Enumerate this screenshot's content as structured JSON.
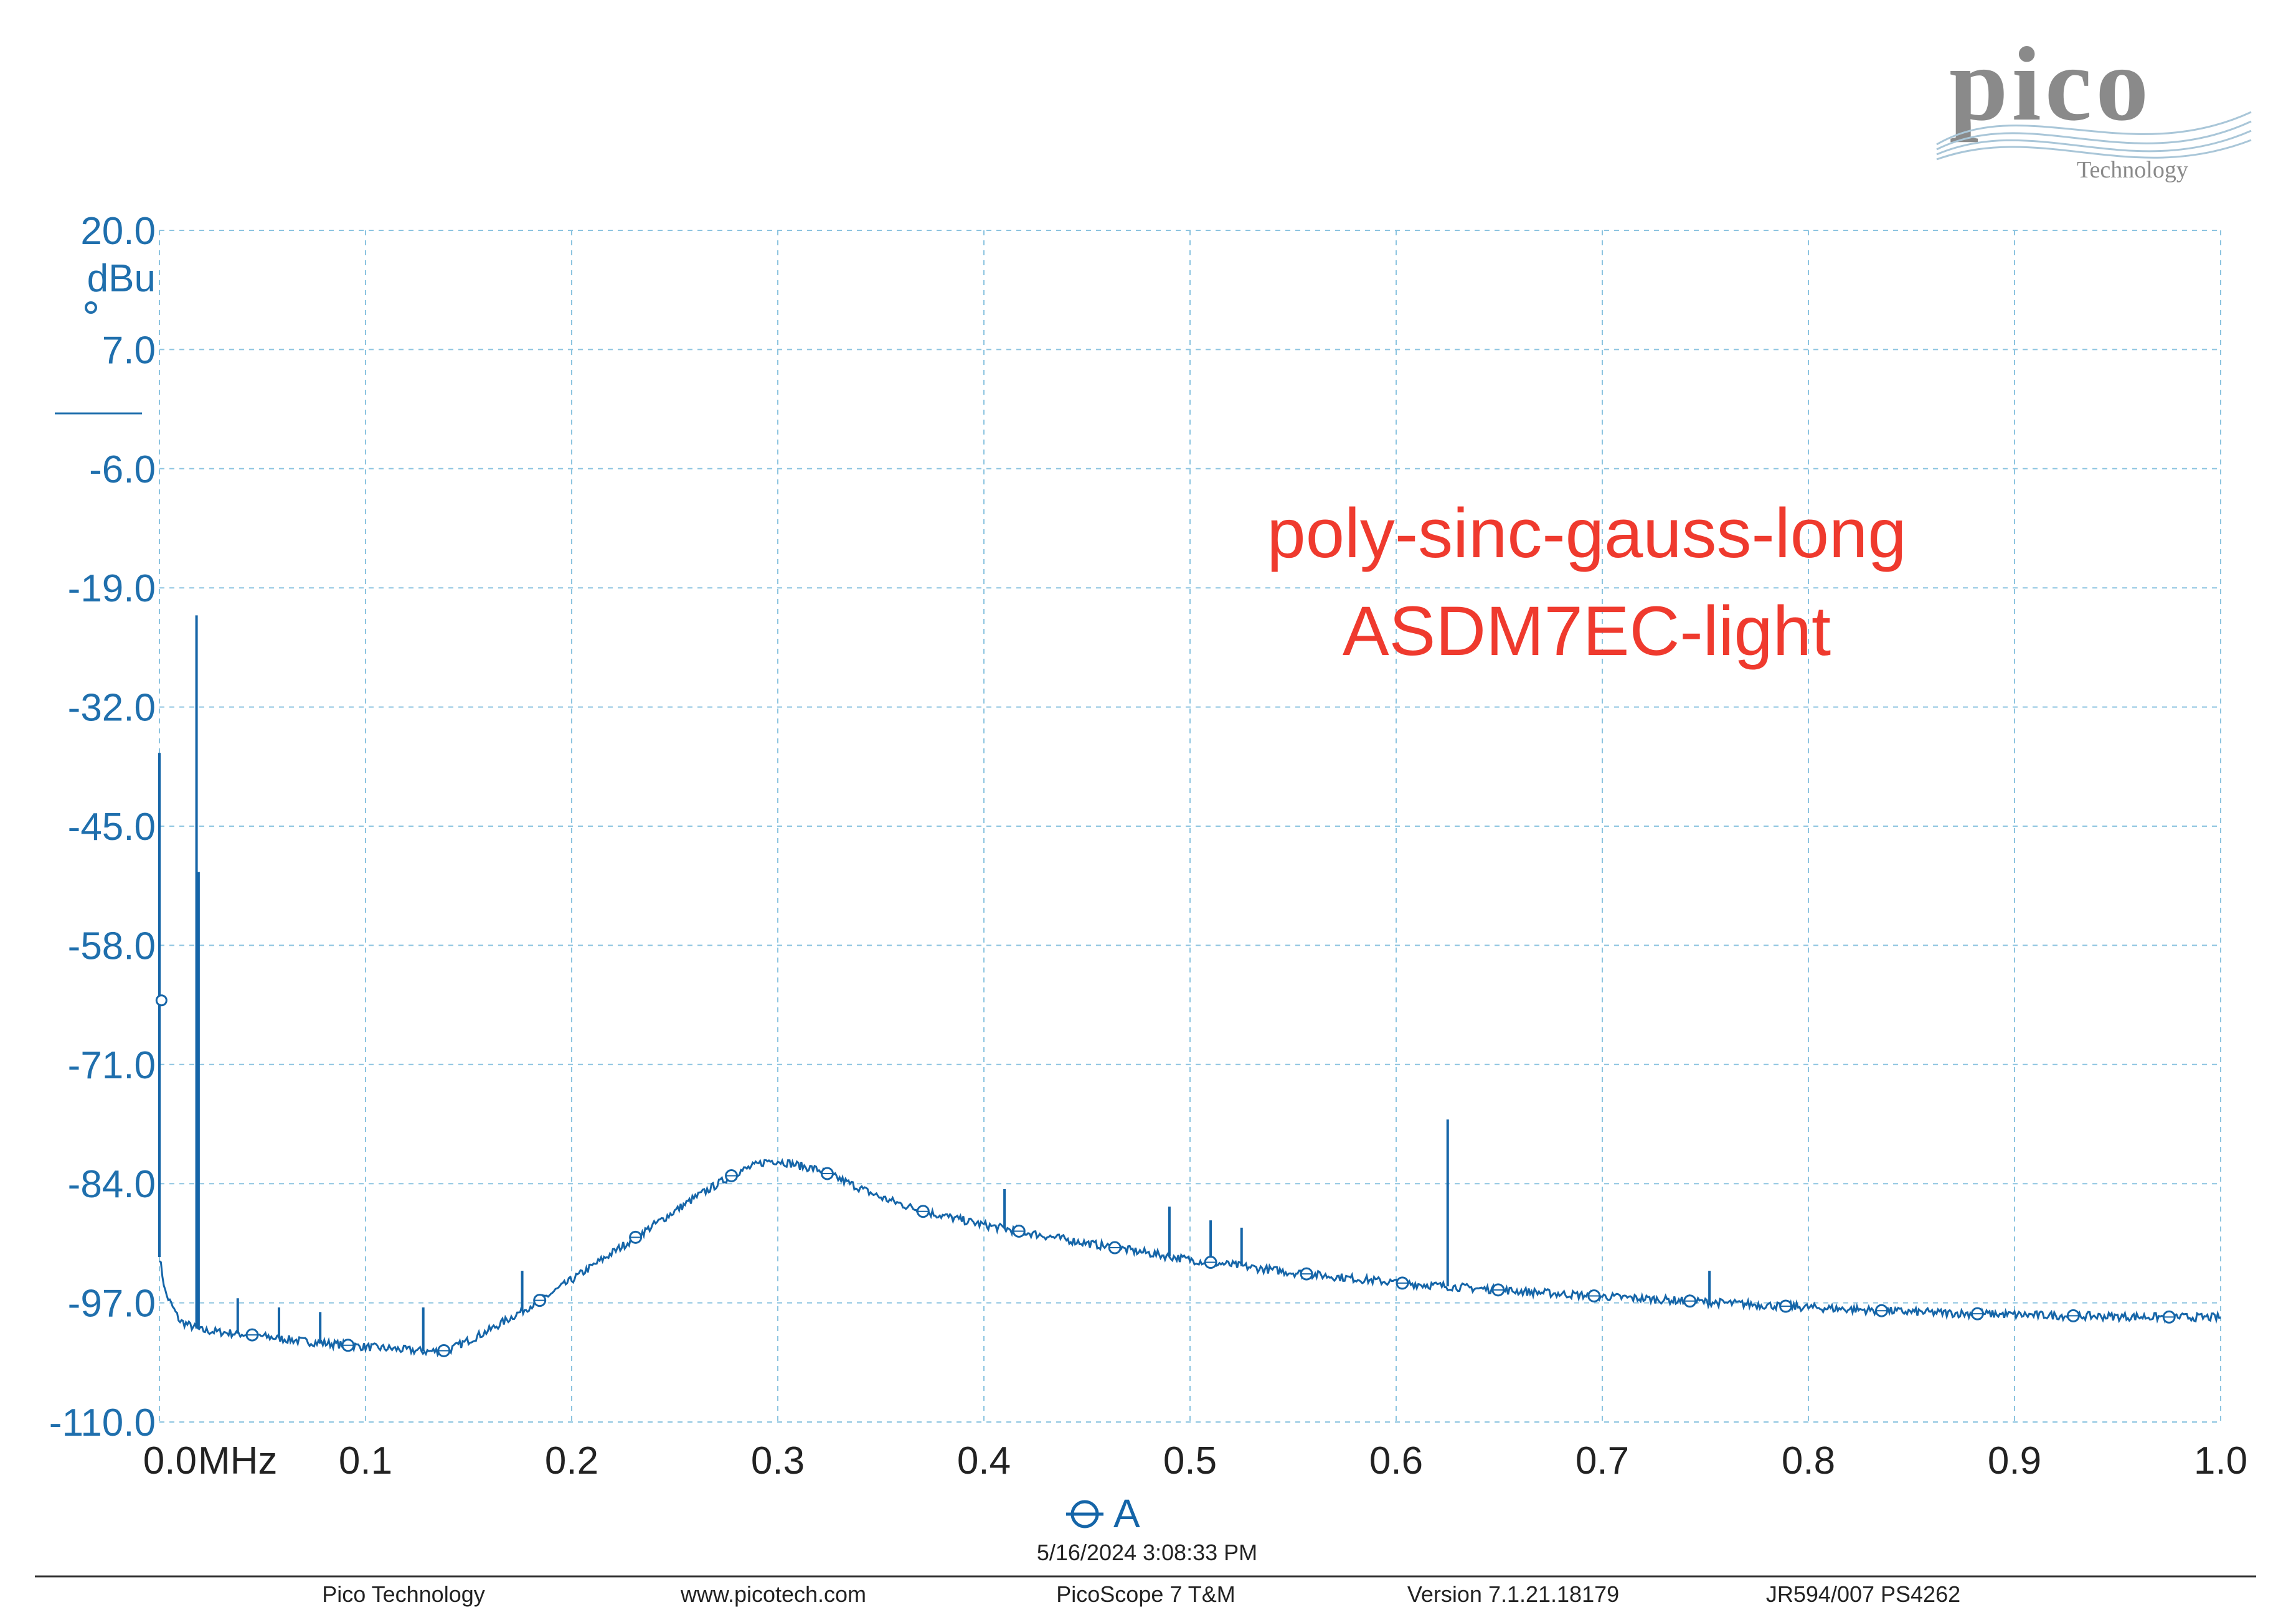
{
  "colors": {
    "trace": "#1565a8",
    "axis_text": "#1f6fad",
    "grid": "#8cc4e0",
    "annotation": "#ef3a2e",
    "logo": "#8a8a8a"
  },
  "logo": {
    "text": "pico",
    "subtext": "Technology"
  },
  "annotation": {
    "line1": "poly-sinc-gauss-long",
    "line2": "ASDM7EC-light"
  },
  "legend": {
    "label": "A",
    "icon": "channel-a-marker-icon"
  },
  "timestamp": "5/16/2024 3:08:33 PM",
  "footer": {
    "company": "Pico Technology",
    "website": "www.picotech.com",
    "product": "PicoScope 7 T&M",
    "version": "Version 7.1.21.18179",
    "device": "JR594/007 PS4262"
  },
  "chart_data": {
    "type": "line",
    "title": "",
    "xlabel": "",
    "ylabel": "dBu",
    "x_unit": "MHz",
    "xlim": [
      0.0,
      1.0
    ],
    "ylim": [
      -110.0,
      20.0
    ],
    "grid": true,
    "x_ticks": [
      "0.0",
      "0.1",
      "0.2",
      "0.3",
      "0.4",
      "0.5",
      "0.6",
      "0.7",
      "0.8",
      "0.9",
      "1.0"
    ],
    "y_ticks": [
      "20.0",
      "7.0",
      "-6.0",
      "-19.0",
      "-32.0",
      "-45.0",
      "-58.0",
      "-71.0",
      "-84.0",
      "-97.0",
      "-110.0"
    ],
    "series": [
      {
        "name": "A",
        "x": [
          0.0,
          0.003,
          0.01,
          0.02,
          0.045,
          0.07,
          0.1,
          0.13,
          0.14,
          0.16,
          0.19,
          0.23,
          0.26,
          0.28,
          0.295,
          0.3,
          0.32,
          0.35,
          0.37,
          0.4,
          0.45,
          0.5,
          0.55,
          0.6,
          0.65,
          0.7,
          0.75,
          0.8,
          0.85,
          0.9,
          0.95,
          1.0
        ],
        "y": [
          -92,
          -96,
          -99,
          -100,
          -100.5,
          -101.2,
          -101.8,
          -102.3,
          -102.2,
          -100,
          -96,
          -90,
          -85.5,
          -82.8,
          -81.5,
          -81.5,
          -82.5,
          -85.5,
          -87,
          -88.5,
          -90.5,
          -92.3,
          -93.7,
          -94.8,
          -95.6,
          -96.3,
          -96.9,
          -97.5,
          -98,
          -98.3,
          -98.5,
          -98.6
        ]
      }
    ],
    "spikes": [
      {
        "x": 0.0,
        "y": -37
      },
      {
        "x": 0.018,
        "y": -22
      },
      {
        "x": 0.019,
        "y": -50
      },
      {
        "x": 0.038,
        "y": -96.5
      },
      {
        "x": 0.058,
        "y": -97.5
      },
      {
        "x": 0.078,
        "y": -98
      },
      {
        "x": 0.128,
        "y": -97.5
      },
      {
        "x": 0.176,
        "y": -93.5
      },
      {
        "x": 0.41,
        "y": -84.6
      },
      {
        "x": 0.49,
        "y": -86.5
      },
      {
        "x": 0.51,
        "y": -88
      },
      {
        "x": 0.525,
        "y": -88.8
      },
      {
        "x": 0.625,
        "y": -77
      },
      {
        "x": 0.752,
        "y": -93.5
      }
    ]
  }
}
